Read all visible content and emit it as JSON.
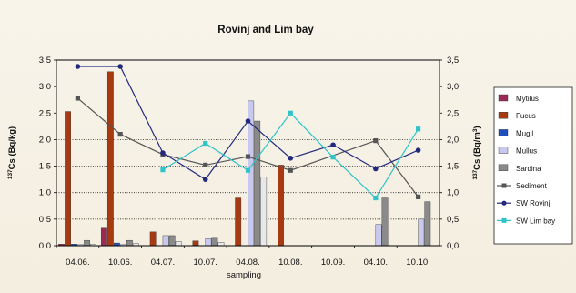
{
  "chart_data": {
    "type": "bar",
    "title": "Rovinj and Lim bay",
    "xlabel": "sampling",
    "ylabel_left": "137Cs (Bq/kg)",
    "ylabel_right": "137Cs (Bq/m3)",
    "ylim_left": [
      0,
      3.5
    ],
    "ylim_right": [
      0,
      3.5
    ],
    "yticks_left": [
      "0,0",
      "0,5",
      "1,0",
      "1,5",
      "2,0",
      "2,5",
      "3,0",
      "3,5"
    ],
    "yticks_right": [
      "0,0",
      "0,5",
      "1,0",
      "1,5",
      "2,0",
      "2,5",
      "3,0",
      "3,5"
    ],
    "categories": [
      "04.06.",
      "10.06.",
      "04.07.",
      "10.07.",
      "04.08.",
      "10.08.",
      "10.09.",
      "04.10.",
      "10.10."
    ],
    "legend_position": "right",
    "bar_series": [
      {
        "name": "Mytilus",
        "color": "#9b2a57",
        "values": [
          0.03,
          0.33,
          null,
          null,
          null,
          null,
          null,
          null,
          null
        ]
      },
      {
        "name": "Fucus",
        "color": "#a83a12",
        "values": [
          2.53,
          3.28,
          0.26,
          0.09,
          0.9,
          1.52,
          null,
          null,
          null
        ]
      },
      {
        "name": "Mugil",
        "color": "#1f4fbf",
        "values": [
          0.03,
          0.05,
          null,
          null,
          null,
          null,
          null,
          null,
          null
        ]
      },
      {
        "name": "Mullus",
        "color": "#c9c9ef",
        "values": [
          0.02,
          0.02,
          0.19,
          0.13,
          2.73,
          null,
          null,
          0.4,
          0.5
        ]
      },
      {
        "name": "Sardina",
        "color": "#8a8a8a",
        "values": [
          0.1,
          0.1,
          0.19,
          0.14,
          2.35,
          null,
          null,
          0.9,
          0.83
        ]
      },
      {
        "name": "",
        "color": "#e8e8e8",
        "values": [
          0.03,
          0.04,
          0.08,
          0.06,
          1.3,
          null,
          null,
          null,
          null
        ]
      }
    ],
    "line_series": [
      {
        "name": "Sediment",
        "color": "#555555",
        "marker": "square",
        "values": [
          2.78,
          2.1,
          1.72,
          1.52,
          1.68,
          1.42,
          null,
          1.98,
          0.92
        ]
      },
      {
        "name": "SW Rovinj",
        "color": "#232a7e",
        "marker": "circle",
        "values": [
          3.38,
          3.38,
          1.75,
          1.25,
          2.35,
          1.65,
          1.9,
          1.45,
          1.8
        ]
      },
      {
        "name": "SW Lim bay",
        "color": "#2ec4c8",
        "marker": "square",
        "values": [
          null,
          null,
          1.43,
          1.93,
          1.42,
          2.5,
          1.67,
          0.9,
          2.2
        ]
      }
    ],
    "grid": "dotted at 0.5, 1.0, 1.5, 2.0"
  }
}
